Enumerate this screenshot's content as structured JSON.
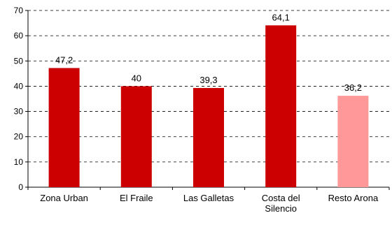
{
  "chart_data": {
    "type": "bar",
    "categories": [
      [
        "Zona Urban"
      ],
      [
        "El Fraile"
      ],
      [
        "Las Galletas"
      ],
      [
        "Costa del",
        "Silencio"
      ],
      [
        "Resto Arona"
      ]
    ],
    "values": [
      47.2,
      40,
      39.3,
      64.1,
      36.2
    ],
    "value_labels": [
      "47,2",
      "40",
      "39,3",
      "64,1",
      "36,2"
    ],
    "bar_colors": [
      "#cc0000",
      "#cc0000",
      "#cc0000",
      "#cc0000",
      "#ff9999"
    ],
    "ylim": [
      0,
      70
    ],
    "yticks": [
      0,
      10,
      20,
      30,
      40,
      50,
      60,
      70
    ],
    "grid": true,
    "title": "",
    "xlabel": "",
    "ylabel": ""
  }
}
